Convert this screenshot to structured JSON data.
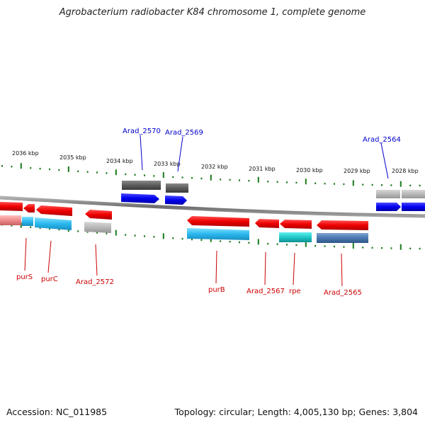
{
  "title": "Agrobacterium radiobacter K84 chromosome 1, complete genome",
  "accession": "Accession: NC_011985",
  "topology": "Topology: circular; Length: 4,005,130 bp; Genes: 3,804",
  "colors": {
    "forward_label": "#0000cc",
    "reverse_label": "#cc0000",
    "backbone": "#808080",
    "tick": "#1a7a1a"
  },
  "scale_labels": [
    "2036 kbp",
    "2035 kbp",
    "2034 kbp",
    "2033 kbp",
    "2032 kbp",
    "2031 kbp",
    "2030 kbp",
    "2029 kbp",
    "2028 kbp"
  ],
  "gene_labels": {
    "forward": [
      "Arad_2570",
      "Arad_2569",
      "Arad_2564"
    ],
    "reverse": [
      "purS",
      "purC",
      "Arad_2572",
      "purB",
      "Arad_2567",
      "rpe",
      "Arad_2565"
    ]
  }
}
